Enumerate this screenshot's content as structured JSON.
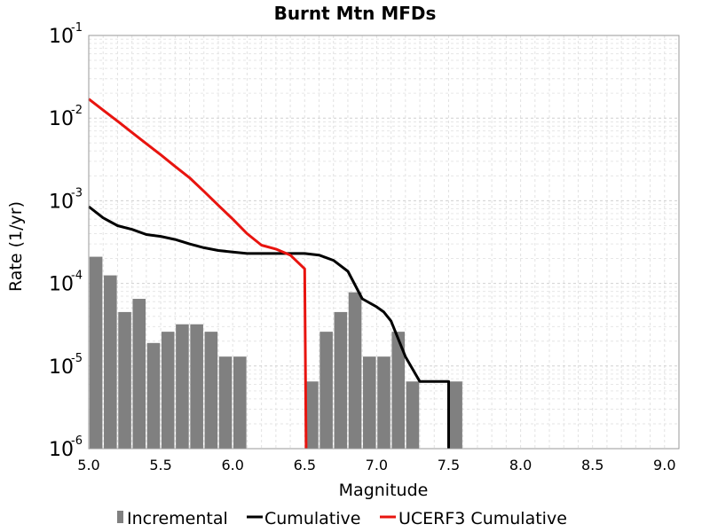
{
  "chart_data": {
    "type": "bar",
    "title": "Burnt Mtn MFDs",
    "xlabel": "Magnitude",
    "ylabel": "Rate (1/yr)",
    "xlim": [
      5.0,
      9.1
    ],
    "ylim": [
      1e-06,
      0.1
    ],
    "yscale": "log",
    "grid": true,
    "legend_position": "bottom",
    "x_ticks": [
      "5.0",
      "5.5",
      "6.0",
      "6.5",
      "7.0",
      "7.5",
      "8.0",
      "8.5",
      "9.0"
    ],
    "y_ticks": [
      {
        "base": "10",
        "exp": "-6"
      },
      {
        "base": "10",
        "exp": "-5"
      },
      {
        "base": "10",
        "exp": "-4"
      },
      {
        "base": "10",
        "exp": "-3"
      },
      {
        "base": "10",
        "exp": "-2"
      },
      {
        "base": "10",
        "exp": "-1"
      }
    ],
    "series": [
      {
        "name": "Incremental",
        "kind": "bar",
        "color": "#808080",
        "bar_width": 0.09,
        "x": [
          5.05,
          5.15,
          5.25,
          5.35,
          5.45,
          5.55,
          5.65,
          5.75,
          5.85,
          5.95,
          6.05,
          6.55,
          6.65,
          6.75,
          6.85,
          6.95,
          7.05,
          7.15,
          7.25,
          7.55
        ],
        "y": [
          0.00021,
          0.000125,
          4.5e-05,
          6.5e-05,
          1.9e-05,
          2.6e-05,
          3.2e-05,
          3.2e-05,
          2.6e-05,
          1.3e-05,
          1.3e-05,
          6.5e-06,
          2.6e-05,
          4.5e-05,
          7.8e-05,
          1.3e-05,
          1.3e-05,
          2.6e-05,
          6.5e-06,
          6.5e-06
        ]
      },
      {
        "name": "Cumulative",
        "kind": "line",
        "color": "#000000",
        "x": [
          5.0,
          5.1,
          5.2,
          5.3,
          5.4,
          5.5,
          5.6,
          5.7,
          5.8,
          5.9,
          6.0,
          6.1,
          6.2,
          6.3,
          6.4,
          6.5,
          6.6,
          6.7,
          6.8,
          6.9,
          7.0,
          7.05,
          7.1,
          7.2,
          7.3,
          7.4,
          7.5,
          7.5
        ],
        "y": [
          0.00085,
          0.00062,
          0.0005,
          0.00045,
          0.00039,
          0.00037,
          0.00034,
          0.0003,
          0.00027,
          0.00025,
          0.00024,
          0.00023,
          0.00023,
          0.00023,
          0.00023,
          0.00023,
          0.00022,
          0.00019,
          0.00014,
          6.5e-05,
          5.2e-05,
          4.5e-05,
          3.5e-05,
          1.3e-05,
          6.5e-06,
          6.5e-06,
          6.5e-06,
          1e-06
        ]
      },
      {
        "name": "UCERF3 Cumulative",
        "kind": "line",
        "color": "#e8140f",
        "x": [
          5.0,
          5.1,
          5.2,
          5.3,
          5.4,
          5.5,
          5.6,
          5.7,
          5.8,
          5.9,
          6.0,
          6.1,
          6.2,
          6.3,
          6.4,
          6.5,
          6.51
        ],
        "y": [
          0.017,
          0.0125,
          0.0092,
          0.0067,
          0.0049,
          0.0036,
          0.0026,
          0.0019,
          0.0013,
          0.00088,
          0.0006,
          0.0004,
          0.00029,
          0.00026,
          0.00022,
          0.00015,
          1e-06
        ]
      }
    ]
  }
}
